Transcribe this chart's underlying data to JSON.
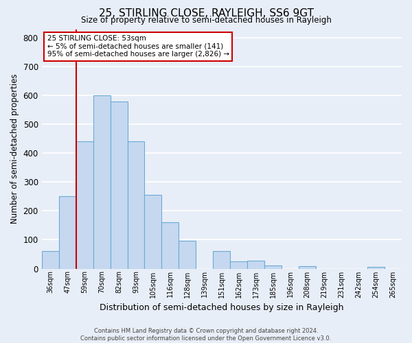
{
  "title": "25, STIRLING CLOSE, RAYLEIGH, SS6 9GT",
  "subtitle": "Size of property relative to semi-detached houses in Rayleigh",
  "xlabel": "Distribution of semi-detached houses by size in Rayleigh",
  "ylabel": "Number of semi-detached properties",
  "footer_line1": "Contains HM Land Registry data © Crown copyright and database right 2024.",
  "footer_line2": "Contains public sector information licensed under the Open Government Licence v3.0.",
  "bar_labels": [
    "36sqm",
    "47sqm",
    "59sqm",
    "70sqm",
    "82sqm",
    "93sqm",
    "105sqm",
    "116sqm",
    "128sqm",
    "139sqm",
    "151sqm",
    "162sqm",
    "173sqm",
    "185sqm",
    "196sqm",
    "208sqm",
    "219sqm",
    "231sqm",
    "242sqm",
    "254sqm",
    "265sqm"
  ],
  "bar_values": [
    60,
    250,
    440,
    600,
    580,
    440,
    255,
    160,
    97,
    0,
    60,
    25,
    27,
    10,
    0,
    8,
    0,
    0,
    0,
    5,
    0
  ],
  "bar_color": "#c5d8f0",
  "bar_edge_color": "#6aaad4",
  "annotation_title": "25 STIRLING CLOSE: 53sqm",
  "annotation_line1": "← 5% of semi-detached houses are smaller (141)",
  "annotation_line2": "95% of semi-detached houses are larger (2,826) →",
  "vline_x_index": 1.5,
  "ylim": [
    0,
    830
  ],
  "yticks": [
    0,
    100,
    200,
    300,
    400,
    500,
    600,
    700,
    800
  ],
  "background_color": "#e8eef7",
  "plot_background_color": "#e8eef7",
  "grid_color": "#ffffff",
  "annotation_box_color": "#ffffff",
  "annotation_box_edge_color": "#cc0000",
  "vline_color": "#cc0000",
  "title_fontsize": 11,
  "subtitle_fontsize": 9
}
